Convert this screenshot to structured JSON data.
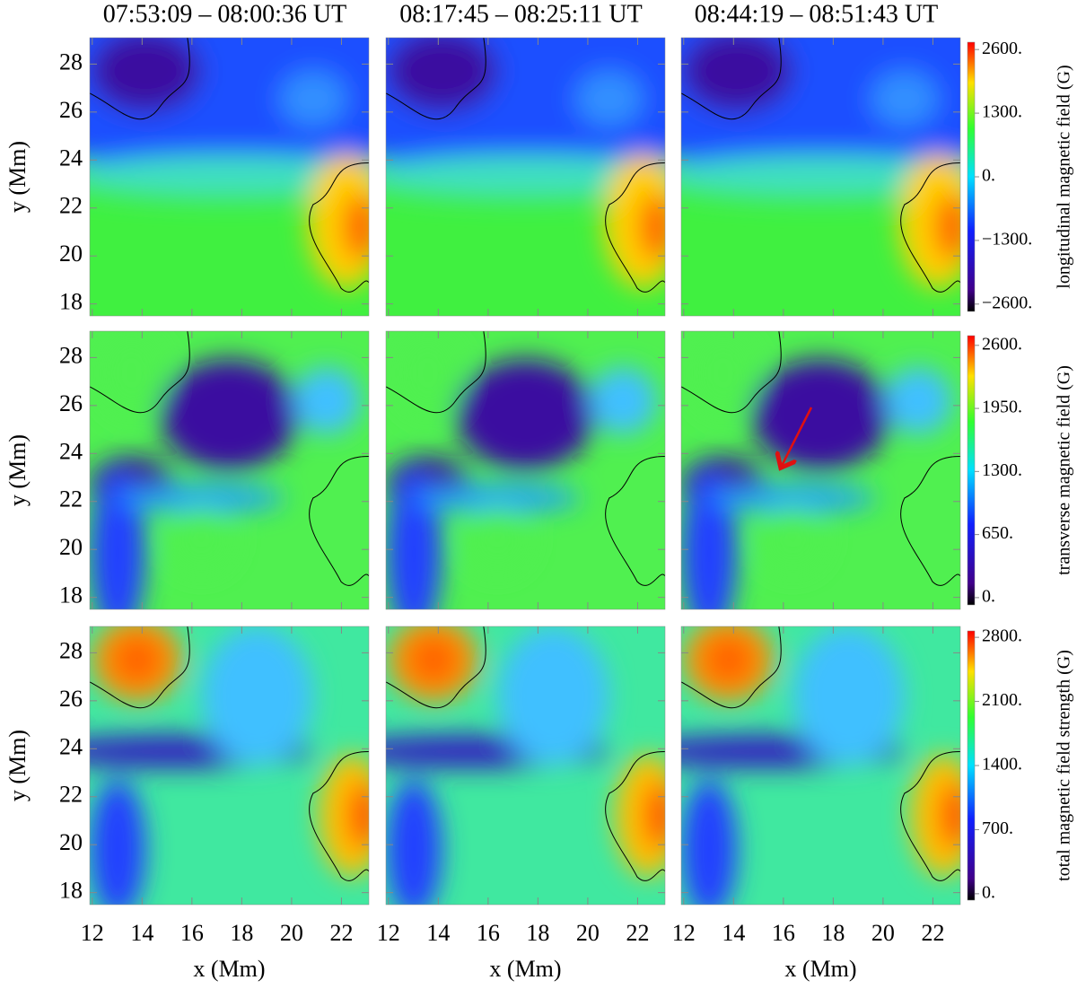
{
  "chart_data": {
    "type": "heatmap",
    "titles": [
      "07:53:09 – 08:00:36 UT",
      "08:17:45 – 08:25:11 UT",
      "08:44:19 – 08:51:43 UT"
    ],
    "xlabel": "x (Mm)",
    "ylabel": "y (Mm)",
    "xlim": [
      11.9,
      23.1
    ],
    "xticks": [
      12,
      14,
      16,
      18,
      20,
      22
    ],
    "ylim": [
      17.5,
      29.1
    ],
    "yticks": [
      18,
      20,
      22,
      24,
      26,
      28
    ],
    "colorbars": [
      {
        "label": "longitudinal magnetic field (G)",
        "lim": [
          -2750,
          2750
        ],
        "ticks": [
          {
            "value": -2600,
            "label": "−2600."
          },
          {
            "value": -1300,
            "label": "−1300."
          },
          {
            "value": 0,
            "label": "0."
          },
          {
            "value": 1300,
            "label": "1300."
          },
          {
            "value": 2600,
            "label": "2600."
          }
        ]
      },
      {
        "label": "transverse magnetic field (G)",
        "lim": [
          -75,
          2700
        ],
        "ticks": [
          {
            "value": 0,
            "label": "0."
          },
          {
            "value": 650,
            "label": "650."
          },
          {
            "value": 1300,
            "label": "1300."
          },
          {
            "value": 1950,
            "label": "1950."
          },
          {
            "value": 2600,
            "label": "2600."
          }
        ]
      },
      {
        "label": "total magnetic field strength (G)",
        "lim": [
          -70,
          2870
        ],
        "ticks": [
          {
            "value": 0,
            "label": "0."
          },
          {
            "value": 700,
            "label": "700."
          },
          {
            "value": 1400,
            "label": "1400."
          },
          {
            "value": 2100,
            "label": "2100."
          },
          {
            "value": 2800,
            "label": "2800."
          }
        ]
      }
    ]
  }
}
